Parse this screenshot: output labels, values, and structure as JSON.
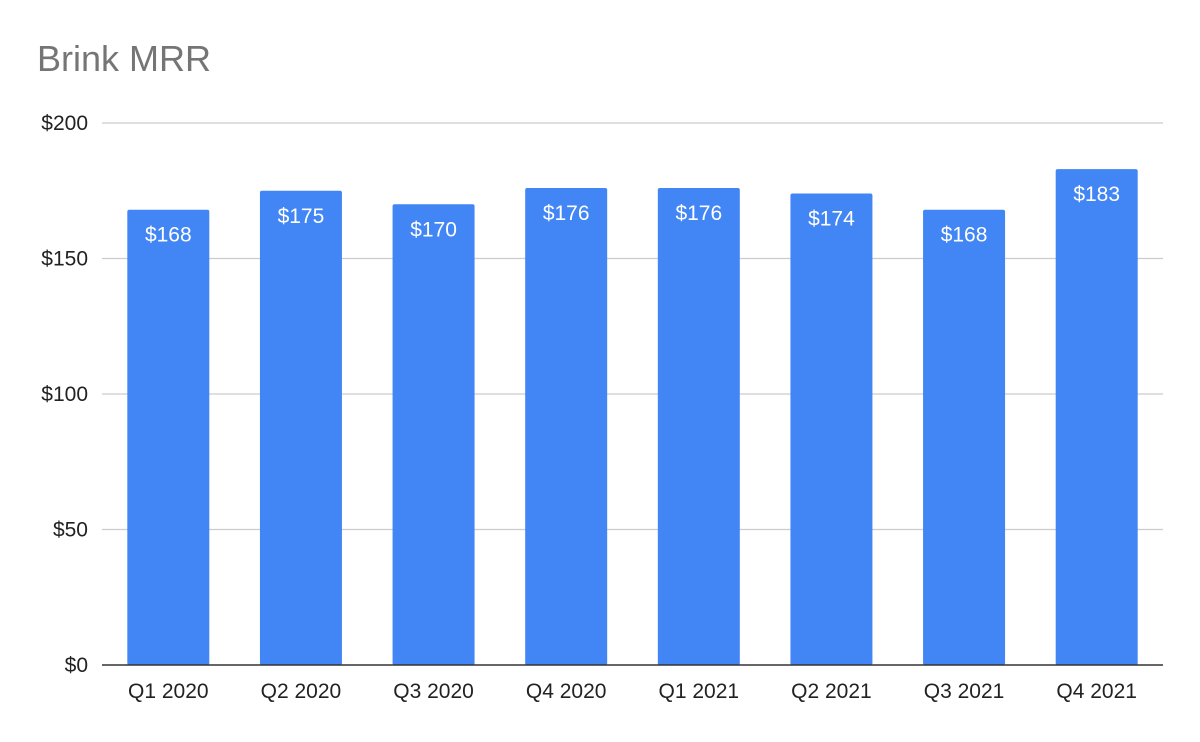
{
  "chart_data": {
    "type": "bar",
    "title": "Brink MRR",
    "categories": [
      "Q1 2020",
      "Q2 2020",
      "Q3 2020",
      "Q4 2020",
      "Q1 2021",
      "Q2 2021",
      "Q3 2021",
      "Q4 2021"
    ],
    "values": [
      168,
      175,
      170,
      176,
      176,
      174,
      168,
      183
    ],
    "data_labels": [
      "$168",
      "$175",
      "$170",
      "$176",
      "$176",
      "$174",
      "$168",
      "$183"
    ],
    "ylim": [
      0,
      200
    ],
    "yticks": [
      0,
      50,
      100,
      150,
      200
    ],
    "ytick_labels": [
      "$0",
      "$50",
      "$100",
      "$150",
      "$200"
    ],
    "xlabel": "",
    "ylabel": "",
    "grid": true,
    "legend": "none",
    "bar_color": "#4285f4",
    "grid_color": "#cccccc",
    "axis_color": "#333333"
  }
}
